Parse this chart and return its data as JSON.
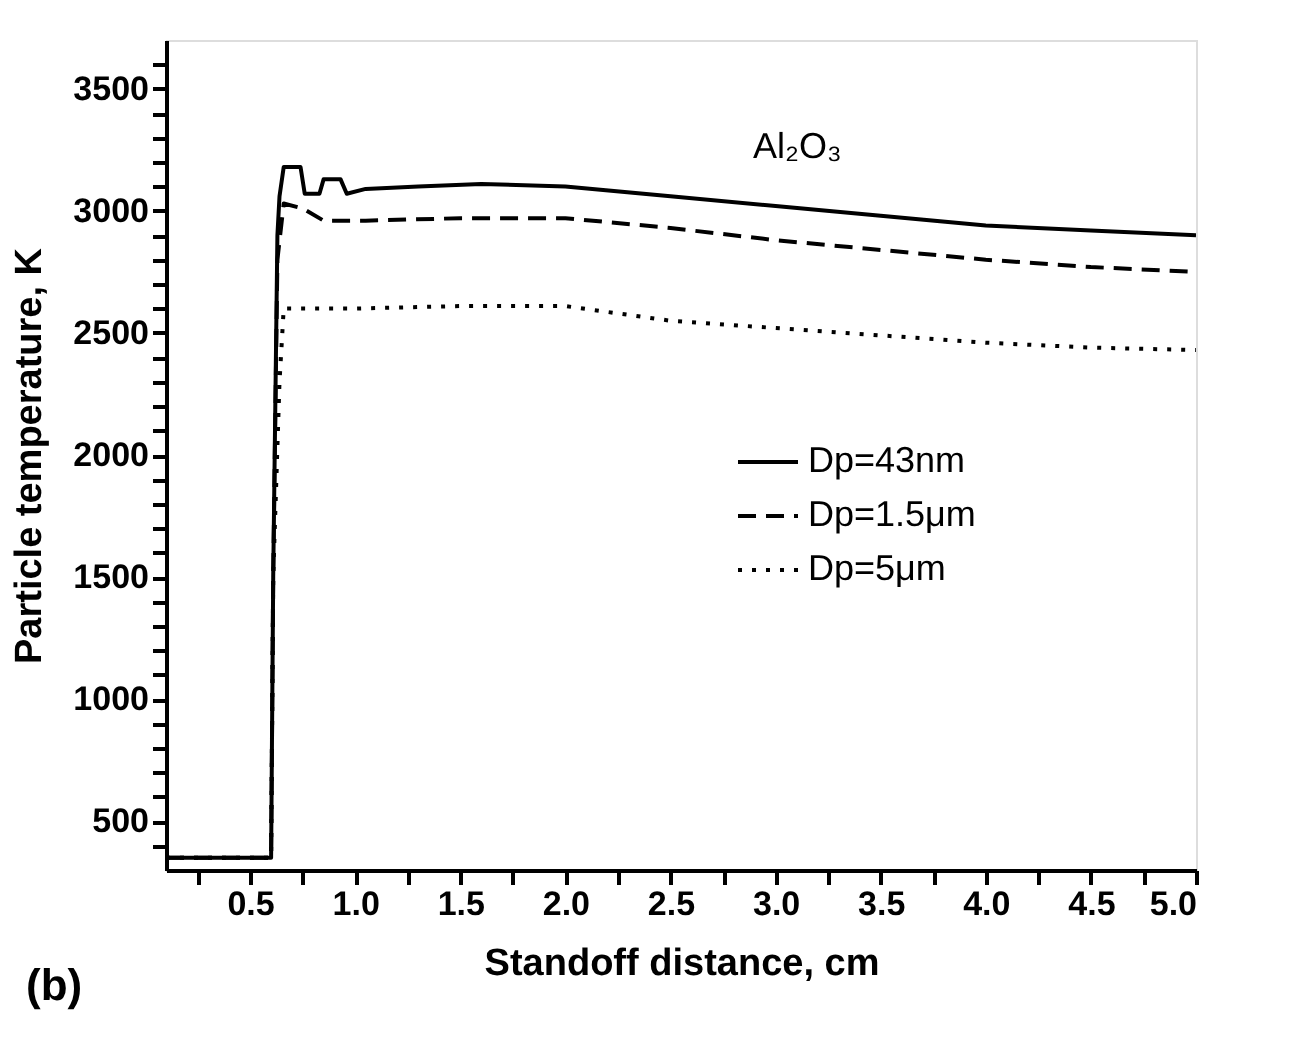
{
  "chart_data": {
    "type": "line",
    "xlabel": "Standoff distance, cm",
    "ylabel": "Particle temperature, K",
    "annotations": [
      "Al₂O₃",
      "(b)"
    ],
    "xlim": [
      0.1,
      5.0
    ],
    "ylim": [
      300,
      3700
    ],
    "xticks": [
      {
        "value": 0.25,
        "label": null
      },
      {
        "value": 0.5,
        "label": "0.5"
      },
      {
        "value": 0.75,
        "label": null
      },
      {
        "value": 1,
        "label": "1.0"
      },
      {
        "value": 1.25,
        "label": null
      },
      {
        "value": 1.5,
        "label": "1.5"
      },
      {
        "value": 1.75,
        "label": null
      },
      {
        "value": 2,
        "label": "2.0"
      },
      {
        "value": 2.25,
        "label": null
      },
      {
        "value": 2.5,
        "label": "2.5"
      },
      {
        "value": 2.75,
        "label": null
      },
      {
        "value": 3,
        "label": "3.0"
      },
      {
        "value": 3.25,
        "label": null
      },
      {
        "value": 3.5,
        "label": "3.5"
      },
      {
        "value": 3.75,
        "label": null
      },
      {
        "value": 4,
        "label": "4.0"
      },
      {
        "value": 4.25,
        "label": null
      },
      {
        "value": 4.5,
        "label": "4.5"
      },
      {
        "value": 4.75,
        "label": null
      },
      {
        "value": 5,
        "label": "5.0"
      }
    ],
    "yticks": [
      {
        "value": 400,
        "label": null
      },
      500,
      {
        "value": 600,
        "label": null
      },
      {
        "value": 700,
        "label": null
      },
      {
        "value": 800,
        "label": null
      },
      {
        "value": 900,
        "label": null
      },
      1000,
      {
        "value": 1100,
        "label": null
      },
      {
        "value": 1200,
        "label": null
      },
      {
        "value": 1300,
        "label": null
      },
      {
        "value": 1400,
        "label": null
      },
      1500,
      {
        "value": 1600,
        "label": null
      },
      {
        "value": 1700,
        "label": null
      },
      {
        "value": 1800,
        "label": null
      },
      {
        "value": 1900,
        "label": null
      },
      2000,
      {
        "value": 2100,
        "label": null
      },
      {
        "value": 2200,
        "label": null
      },
      {
        "value": 2300,
        "label": null
      },
      {
        "value": 2400,
        "label": null
      },
      2500,
      {
        "value": 2600,
        "label": null
      },
      {
        "value": 2700,
        "label": null
      },
      {
        "value": 2800,
        "label": null
      },
      {
        "value": 2900,
        "label": null
      },
      3000,
      {
        "value": 3100,
        "label": null
      },
      {
        "value": 3200,
        "label": null
      },
      {
        "value": 3300,
        "label": null
      },
      {
        "value": 3400,
        "label": null
      },
      3500,
      {
        "value": 3600,
        "label": null
      }
    ],
    "grid": false,
    "legend": "right",
    "series": [
      {
        "name": "Dp=43nm",
        "color": "#000000",
        "line_style": "solid",
        "x": [
          0.1,
          0.6,
          0.61,
          0.63,
          0.64,
          0.66,
          0.74,
          0.76,
          0.83,
          0.85,
          0.93,
          0.96,
          1.05,
          1.3,
          1.6,
          2.0,
          2.5,
          3.0,
          3.5,
          4.0,
          4.5,
          5.0
        ],
        "values": [
          350,
          350,
          1500,
          2900,
          3060,
          3180,
          3180,
          3070,
          3070,
          3130,
          3130,
          3070,
          3090,
          3100,
          3110,
          3100,
          3060,
          3020,
          2980,
          2940,
          2920,
          2900
        ]
      },
      {
        "name": "Dp=1.5μm",
        "color": "#000000",
        "line_style": "dashed",
        "x": [
          0.1,
          0.6,
          0.61,
          0.63,
          0.66,
          0.75,
          0.85,
          1.05,
          1.5,
          2.0,
          2.5,
          3.0,
          3.5,
          4.0,
          4.5,
          5.0
        ],
        "values": [
          350,
          350,
          1500,
          2800,
          3030,
          3010,
          2960,
          2960,
          2970,
          2970,
          2930,
          2880,
          2840,
          2800,
          2770,
          2750
        ]
      },
      {
        "name": "Dp=5μm",
        "color": "#000000",
        "line_style": "dotted",
        "x": [
          0.1,
          0.6,
          0.61,
          0.64,
          0.66,
          1.0,
          1.5,
          2.0,
          2.5,
          3.0,
          3.5,
          4.0,
          4.5,
          5.0
        ],
        "values": [
          350,
          350,
          1500,
          2300,
          2600,
          2600,
          2610,
          2610,
          2550,
          2520,
          2490,
          2460,
          2440,
          2430
        ]
      }
    ]
  }
}
